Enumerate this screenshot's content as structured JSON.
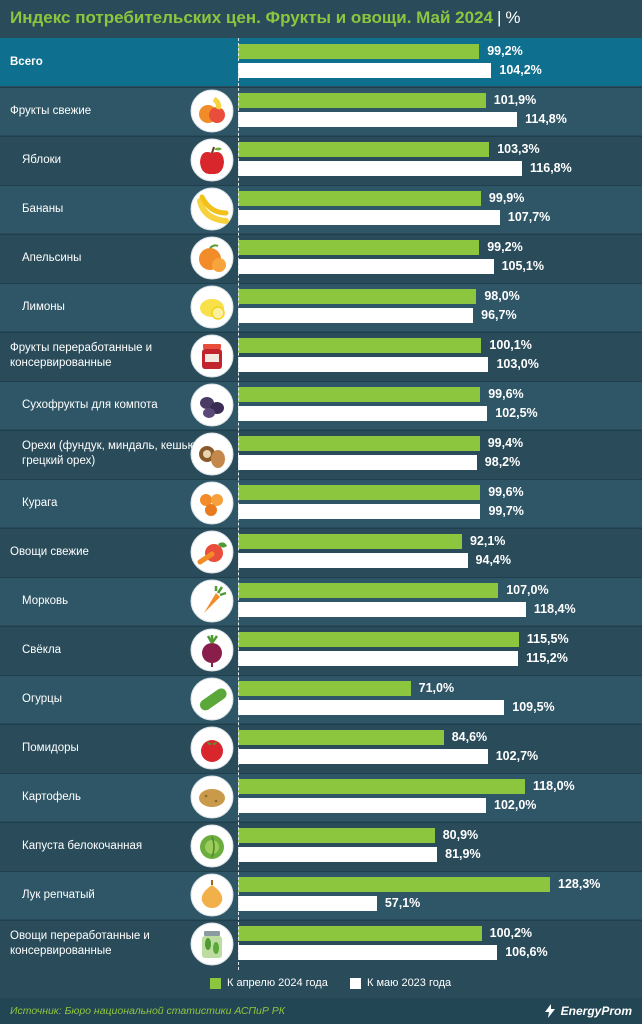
{
  "header": {
    "title": "Индекс потребительских цен. Фрукты и овощи. Май 2024",
    "separator": "|",
    "unit": "%"
  },
  "chart_data": {
    "type": "bar",
    "orientation": "horizontal",
    "title": "Индекс потребительских цен. Фрукты и овощи. Май 2024",
    "unit": "%",
    "axis_min": 0,
    "axis_max": 130,
    "legend_position": "bottom",
    "series": [
      {
        "name": "К апрелю 2024 года",
        "color": "#8cc63f"
      },
      {
        "name": "К маю 2023 года",
        "color": "#ffffff"
      }
    ],
    "categories": [
      {
        "label": "Всего",
        "level": 0,
        "highlight": true,
        "icon": "",
        "v1": 99.2,
        "t1": "99,2%",
        "v2": 104.2,
        "t2": "104,2%"
      },
      {
        "label": "Фрукты свежие",
        "level": 0,
        "icon": "fruit-mix-icon",
        "v1": 101.9,
        "t1": "101,9%",
        "v2": 114.8,
        "t2": "114,8%"
      },
      {
        "label": "Яблоки",
        "level": 1,
        "icon": "apple-icon",
        "v1": 103.3,
        "t1": "103,3%",
        "v2": 116.8,
        "t2": "116,8%"
      },
      {
        "label": "Бананы",
        "level": 1,
        "icon": "banana-icon",
        "v1": 99.9,
        "t1": "99,9%",
        "v2": 107.7,
        "t2": "107,7%"
      },
      {
        "label": "Апельсины",
        "level": 1,
        "icon": "orange-icon",
        "v1": 99.2,
        "t1": "99,2%",
        "v2": 105.1,
        "t2": "105,1%"
      },
      {
        "label": "Лимоны",
        "level": 1,
        "icon": "lemon-icon",
        "v1": 98.0,
        "t1": "98,0%",
        "v2": 96.7,
        "t2": "96,7%"
      },
      {
        "label": "Фрукты переработанные и консервированные",
        "level": 0,
        "icon": "jam-jar-icon",
        "v1": 100.1,
        "t1": "100,1%",
        "v2": 103.0,
        "t2": "103,0%"
      },
      {
        "label": "Сухофрукты для компота",
        "level": 1,
        "icon": "dried-fruit-icon",
        "v1": 99.6,
        "t1": "99,6%",
        "v2": 102.5,
        "t2": "102,5%"
      },
      {
        "label": "Орехи (фундук, миндаль, кешью, грецкий орех)",
        "level": 1,
        "icon": "nuts-icon",
        "v1": 99.4,
        "t1": "99,4%",
        "v2": 98.2,
        "t2": "98,2%"
      },
      {
        "label": "Курага",
        "level": 1,
        "icon": "dried-apricot-icon",
        "v1": 99.6,
        "t1": "99,6%",
        "v2": 99.7,
        "t2": "99,7%"
      },
      {
        "label": "Овощи свежие",
        "level": 0,
        "icon": "vegetable-mix-icon",
        "v1": 92.1,
        "t1": "92,1%",
        "v2": 94.4,
        "t2": "94,4%"
      },
      {
        "label": "Морковь",
        "level": 1,
        "icon": "carrot-icon",
        "v1": 107.0,
        "t1": "107,0%",
        "v2": 118.4,
        "t2": "118,4%"
      },
      {
        "label": "Свёкла",
        "level": 1,
        "icon": "beet-icon",
        "v1": 115.5,
        "t1": "115,5%",
        "v2": 115.2,
        "t2": "115,2%"
      },
      {
        "label": "Огурцы",
        "level": 1,
        "icon": "cucumber-icon",
        "v1": 71.0,
        "t1": "71,0%",
        "v2": 109.5,
        "t2": "109,5%"
      },
      {
        "label": "Помидоры",
        "level": 1,
        "icon": "tomato-icon",
        "v1": 84.6,
        "t1": "84,6%",
        "v2": 102.7,
        "t2": "102,7%"
      },
      {
        "label": "Картофель",
        "level": 1,
        "icon": "potato-icon",
        "v1": 118.0,
        "t1": "118,0%",
        "v2": 102.0,
        "t2": "102,0%"
      },
      {
        "label": "Капуста белокочанная",
        "level": 1,
        "icon": "cabbage-icon",
        "v1": 80.9,
        "t1": "80,9%",
        "v2": 81.9,
        "t2": "81,9%"
      },
      {
        "label": "Лук репчатый",
        "level": 1,
        "icon": "onion-icon",
        "v1": 128.3,
        "t1": "128,3%",
        "v2": 57.1,
        "t2": "57,1%"
      },
      {
        "label": "Овощи переработанные и консервированные",
        "level": 0,
        "icon": "pickle-jar-icon",
        "v1": 100.2,
        "t1": "100,2%",
        "v2": 106.6,
        "t2": "106,6%"
      }
    ]
  },
  "legend": {
    "item1": "К апрелю 2024 года",
    "item2": "К маю 2023 года"
  },
  "footer": {
    "source": "Источник: Бюро национальной статистики АСПиР РК",
    "logo": "EnergyProm"
  }
}
